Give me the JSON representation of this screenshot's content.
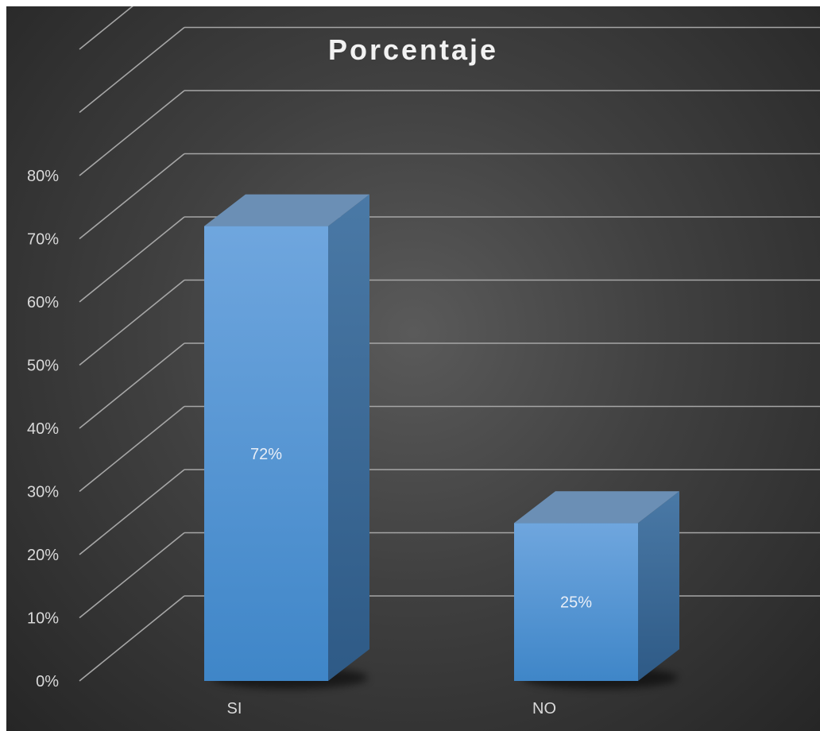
{
  "chart_data": {
    "type": "bar",
    "title": "Porcentaje",
    "categories": [
      "SI",
      "NO"
    ],
    "values": [
      72,
      25
    ],
    "data_labels": [
      "72%",
      "25%"
    ],
    "ylim": [
      0,
      80
    ],
    "yticks": [
      "0%",
      "10%",
      "20%",
      "30%",
      "40%",
      "50%",
      "60%",
      "70%",
      "80%"
    ],
    "grid": true,
    "legend": "none",
    "style": "3d-column",
    "colors": {
      "bar_front": "#5b9bd5",
      "bar_side": "#3f6c96",
      "bar_top": "#6b8fb5",
      "gridline": "#a6a6a6",
      "background": "#404040"
    }
  }
}
